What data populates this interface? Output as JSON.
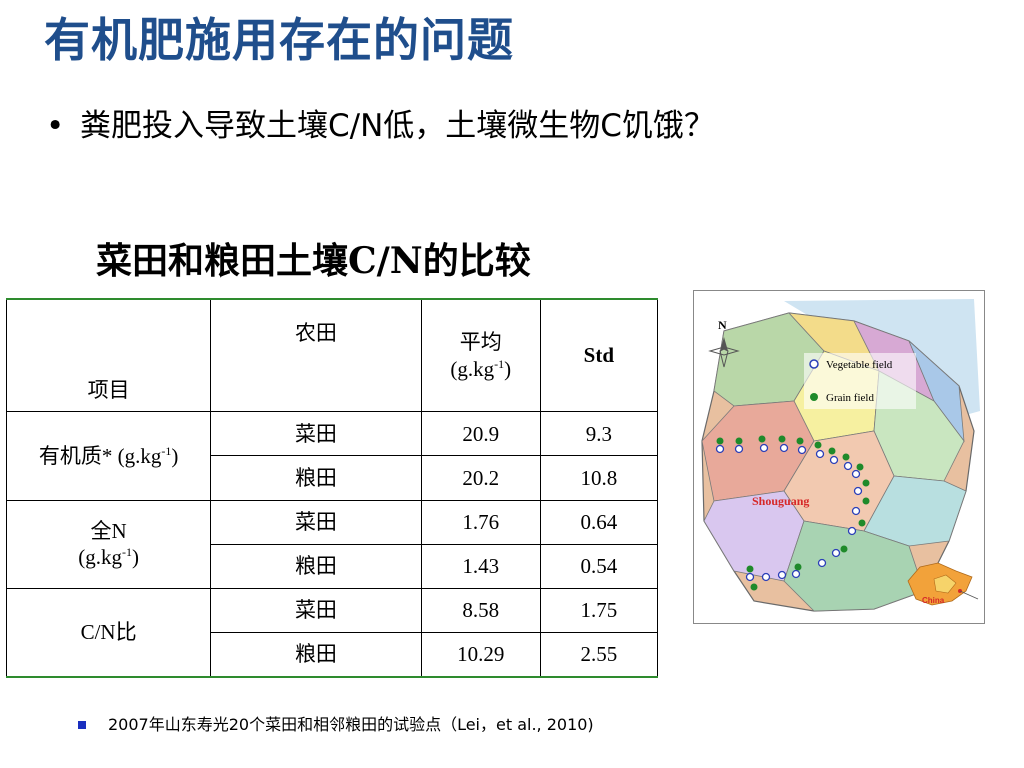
{
  "title": "有机肥施用存在的问题",
  "bullet": {
    "symbol": "•",
    "text": "粪肥投入导致土壤C/N低，土壤微生物C饥饿？"
  },
  "subtitle": "菜田和粮田土壤C/N的比较",
  "table": {
    "headers": {
      "item": "项目",
      "field": "农田",
      "mean_label": "平均",
      "mean_unit_pre": "(g.kg",
      "mean_unit_sup": "-1",
      "mean_unit_post": ")",
      "std": "Std"
    },
    "groups": [
      {
        "label_line1": "有机质* (g.kg",
        "label_sup": "-1",
        "label_post": ")",
        "rows": [
          {
            "field": "菜田",
            "mean": "20.9",
            "std": "9.3"
          },
          {
            "field": "粮田",
            "mean": "20.2",
            "std": "10.8"
          }
        ]
      },
      {
        "label_line1": "全N",
        "label_line2_pre": "(g.kg",
        "label_sup": "-1",
        "label_post": ")",
        "rows": [
          {
            "field": "菜田",
            "mean": "1.76",
            "std": "0.64"
          },
          {
            "field": "粮田",
            "mean": "1.43",
            "std": "0.54"
          }
        ]
      },
      {
        "label_line1": "C/N比",
        "rows": [
          {
            "field": "菜田",
            "mean": "8.58",
            "std": "1.75"
          },
          {
            "field": "粮田",
            "mean": "10.29",
            "std": "2.55"
          }
        ]
      }
    ]
  },
  "map": {
    "north": "N",
    "legend": [
      {
        "label": "Vegetable field",
        "fill": "#ffffff",
        "stroke": "#2b3fb8"
      },
      {
        "label": "Grain field",
        "fill": "#1f8a2a",
        "stroke": "#1f8a2a"
      }
    ],
    "region_label": "Shouguang",
    "inset_label": "China",
    "colors": {
      "region_label": "#d62828",
      "inset_label": "#d62828"
    }
  },
  "footnote": "2007年山东寿光20个菜田和相邻粮田的试验点（Lei，et al., 2010)"
}
